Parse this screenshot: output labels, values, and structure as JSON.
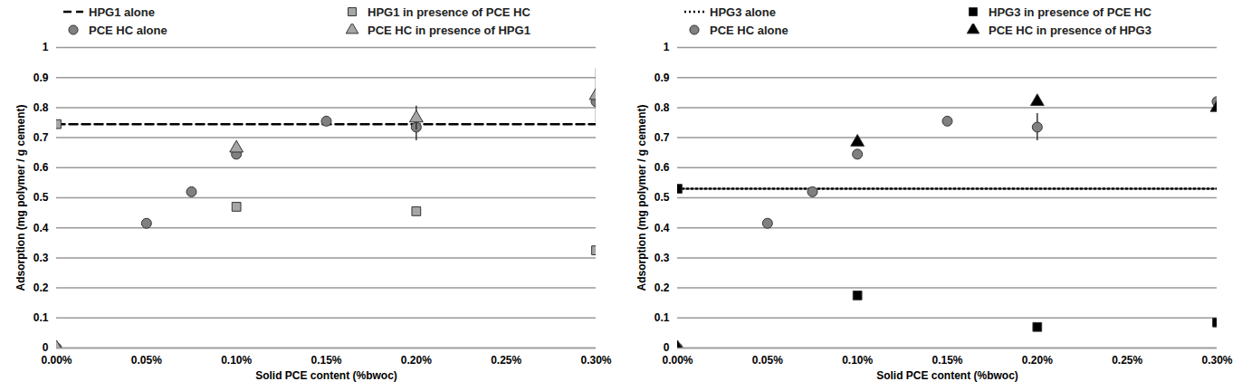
{
  "chart_data": [
    {
      "type": "scatter",
      "xlabel": "Solid PCE content (%bwoc)",
      "ylabel": "Adsorption (mg polymer / g cement)",
      "xlim": [
        0,
        0.3
      ],
      "xticks": [
        {
          "value": 0,
          "label": "0.00%"
        },
        {
          "value": 0.05,
          "label": "0.05%"
        },
        {
          "value": 0.1,
          "label": "0.10%"
        },
        {
          "value": 0.15,
          "label": "0.15%"
        },
        {
          "value": 0.2,
          "label": "0.20%"
        },
        {
          "value": 0.25,
          "label": "0.25%"
        },
        {
          "value": 0.3,
          "label": "0.30%"
        }
      ],
      "ylim": [
        0,
        1
      ],
      "yticks": [
        0,
        0.1,
        0.2,
        0.3,
        0.4,
        0.5,
        0.6,
        0.7,
        0.8,
        0.9,
        1
      ],
      "grid": true,
      "legend": "top",
      "series": [
        {
          "name": "HPG1 alone",
          "type": "line",
          "line_style": "dashed",
          "color": "#000000",
          "x": [
            0,
            0.3
          ],
          "values": [
            0.745,
            0.745
          ]
        },
        {
          "name": "HPG1 in presence of PCE HC",
          "type": "scatter",
          "marker": "square",
          "color": "#a6a6a6",
          "x": [
            0,
            0.1,
            0.2,
            0.3
          ],
          "values": [
            0.745,
            0.47,
            0.455,
            0.325
          ]
        },
        {
          "name": "PCE HC alone",
          "type": "scatter",
          "marker": "circle",
          "color": "#808080",
          "x": [
            0,
            0.05,
            0.075,
            0.1,
            0.15,
            0.2,
            0.3
          ],
          "values": [
            0,
            0.415,
            0.52,
            0.645,
            0.755,
            0.735,
            0.82
          ],
          "error": [
            null,
            null,
            null,
            null,
            null,
            0.045,
            null
          ]
        },
        {
          "name": "PCE HC in presence of HPG1",
          "type": "scatter",
          "marker": "triangle",
          "color": "#a6a6a6",
          "x": [
            0,
            0.1,
            0.2,
            0.3
          ],
          "values": [
            0,
            0.665,
            0.765,
            0.84
          ],
          "error": [
            null,
            null,
            0.04,
            0.09
          ]
        }
      ]
    },
    {
      "type": "scatter",
      "xlabel": "Solid PCE content (%bwoc)",
      "ylabel": "Adsorption (mg polymer / g cement)",
      "xlim": [
        0,
        0.3
      ],
      "xticks": [
        {
          "value": 0,
          "label": "0.00%"
        },
        {
          "value": 0.05,
          "label": "0.05%"
        },
        {
          "value": 0.1,
          "label": "0.10%"
        },
        {
          "value": 0.15,
          "label": "0.15%"
        },
        {
          "value": 0.2,
          "label": "0.20%"
        },
        {
          "value": 0.25,
          "label": "0.25%"
        },
        {
          "value": 0.3,
          "label": "0.30%"
        }
      ],
      "ylim": [
        0,
        1
      ],
      "yticks": [
        0,
        0.1,
        0.2,
        0.3,
        0.4,
        0.5,
        0.6,
        0.7,
        0.8,
        0.9,
        1
      ],
      "grid": true,
      "legend": "top",
      "series": [
        {
          "name": "HPG3 alone",
          "type": "line",
          "line_style": "dotted",
          "color": "#000000",
          "x": [
            0,
            0.3
          ],
          "values": [
            0.53,
            0.53
          ]
        },
        {
          "name": "HPG3 in presence of PCE HC",
          "type": "scatter",
          "marker": "square",
          "color": "#000000",
          "x": [
            0,
            0.1,
            0.2,
            0.3
          ],
          "values": [
            0.53,
            0.175,
            0.07,
            0.085
          ]
        },
        {
          "name": "PCE HC alone",
          "type": "scatter",
          "marker": "circle",
          "color": "#808080",
          "x": [
            0,
            0.05,
            0.075,
            0.1,
            0.15,
            0.2,
            0.3
          ],
          "values": [
            0,
            0.415,
            0.52,
            0.645,
            0.755,
            0.735,
            0.82
          ],
          "error": [
            null,
            null,
            null,
            null,
            null,
            0.045,
            null
          ]
        },
        {
          "name": "PCE HC in presence of HPG3",
          "type": "scatter",
          "marker": "triangle",
          "color": "#000000",
          "x": [
            0,
            0.1,
            0.2,
            0.3
          ],
          "values": [
            0,
            0.685,
            0.82,
            0.8
          ]
        }
      ]
    }
  ]
}
